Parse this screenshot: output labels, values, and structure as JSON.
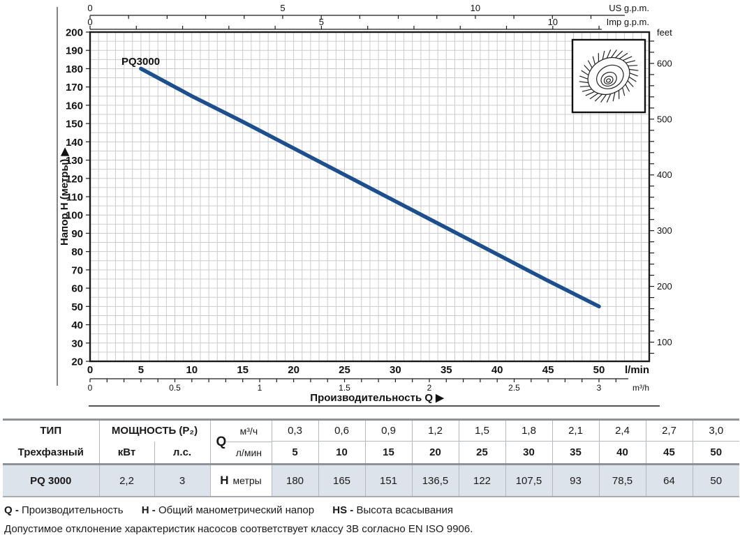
{
  "colors": {
    "curve": "#1b4f8f",
    "grid": "#cccccc",
    "row_bg": "#dce3ea",
    "axis": "#1a1a1a"
  },
  "chart_data": {
    "type": "line",
    "title_label": "PQ3000",
    "series": [
      {
        "name": "PQ3000",
        "x_lmin": [
          5,
          10,
          15,
          20,
          25,
          30,
          35,
          40,
          45,
          50
        ],
        "h_m": [
          180,
          165,
          151,
          136.5,
          122,
          107.5,
          93,
          78.5,
          64,
          50
        ]
      }
    ],
    "xlabel": "Производительность Q",
    "grid": true,
    "axes": {
      "y_m": {
        "label": "Напор H (метры)",
        "ticks": [
          20,
          30,
          40,
          50,
          60,
          70,
          80,
          90,
          100,
          110,
          120,
          130,
          140,
          150,
          160,
          170,
          180,
          190,
          200
        ],
        "range": [
          20,
          200
        ]
      },
      "y_feet": {
        "label": "feet",
        "ticks": [
          100,
          200,
          300,
          400,
          500,
          600
        ]
      },
      "x_lmin": {
        "label": "l/min",
        "ticks": [
          0,
          5,
          10,
          15,
          20,
          25,
          30,
          35,
          40,
          45,
          50
        ],
        "range": [
          0,
          55
        ]
      },
      "x_m3h": {
        "label": "m³/h",
        "ticks": [
          0,
          0.5,
          1,
          1.5,
          2,
          2.5,
          3
        ]
      },
      "x_usgpm": {
        "label": "US g.p.m.",
        "ticks": [
          0,
          5,
          10
        ]
      },
      "x_impgpm": {
        "label": "Imp g.p.m.",
        "ticks": [
          0,
          5,
          10
        ]
      }
    }
  },
  "table": {
    "type_header": "ТИП",
    "type_value": "Трехфазный",
    "model": "PQ 3000",
    "power": {
      "header": "МОЩНОСТЬ (P₂)",
      "kw_label": "кВт",
      "hp_label": "л.с.",
      "kw_value": "2,2",
      "hp_value": "3"
    },
    "q": {
      "symbol": "Q",
      "unit_m3h": "м³/ч",
      "unit_lmin": "л/мин"
    },
    "h": {
      "symbol": "H",
      "unit": "метры"
    },
    "m3h_values": [
      "0,3",
      "0,6",
      "0,9",
      "1,2",
      "1,5",
      "1,8",
      "2,1",
      "2,4",
      "2,7",
      "3,0"
    ],
    "lmin_values": [
      "5",
      "10",
      "15",
      "20",
      "25",
      "30",
      "35",
      "40",
      "45",
      "50"
    ],
    "h_values": [
      "180",
      "165",
      "151",
      "136,5",
      "122",
      "107,5",
      "93",
      "78,5",
      "64",
      "50"
    ]
  },
  "footer": {
    "legend": [
      {
        "term": "Q -",
        "desc": "Производительность"
      },
      {
        "term": "H -",
        "desc": "Общий манометрический напор"
      },
      {
        "term": "HS -",
        "desc": "Высота всасывания"
      }
    ],
    "note": "Допустимое отклонение характеристик насосов соответствует классу 3B согласно EN ISO 9906."
  }
}
